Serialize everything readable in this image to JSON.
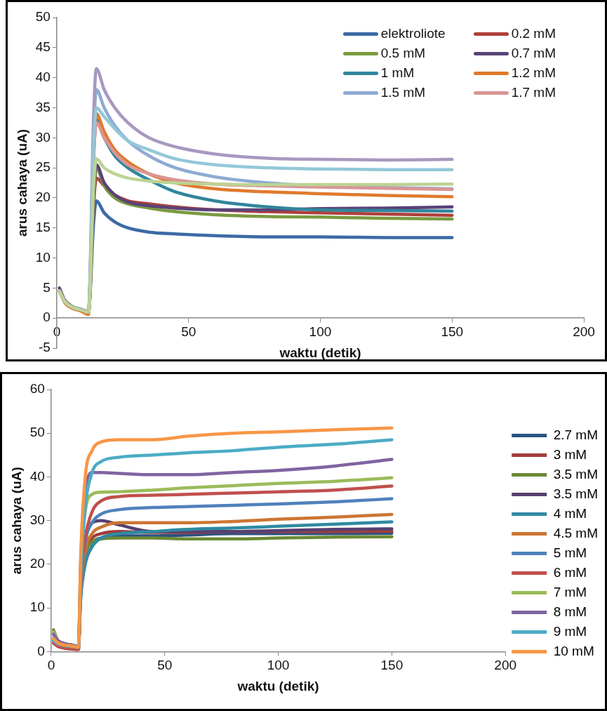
{
  "chart_data": [
    {
      "type": "line",
      "xlabel": "waktu (detik)",
      "ylabel": "arus cahaya (uA)",
      "xlim": [
        0,
        200
      ],
      "xticks": [
        0,
        50,
        100,
        150,
        200
      ],
      "ylim": [
        -5,
        50
      ],
      "yticks": [
        -5,
        0,
        5,
        10,
        15,
        20,
        25,
        30,
        35,
        40,
        45,
        50
      ],
      "grid": false,
      "legend": "top right",
      "marker": "none",
      "x": [
        1,
        3,
        6,
        9,
        12,
        14,
        15,
        18,
        22,
        27,
        35,
        45,
        60,
        80,
        100,
        125,
        150
      ],
      "series": [
        {
          "name": "elektroliote",
          "color": "#3d6aa5",
          "values": [
            4.5,
            2.8,
            1.8,
            1.4,
            1.0,
            16,
            19.5,
            17.5,
            16,
            15,
            14.3,
            14,
            13.7,
            13.5,
            13.5,
            13.4,
            13.4
          ]
        },
        {
          "name": "0.2 mM",
          "color": "#b03f3c",
          "values": [
            4.5,
            2.8,
            1.8,
            1.4,
            1.0,
            19,
            23.3,
            22,
            20.5,
            19.5,
            19,
            18.5,
            18,
            17.7,
            17.5,
            17.3,
            17.1
          ]
        },
        {
          "name": "0.5 mM",
          "color": "#7a9b40",
          "values": [
            4.5,
            2.8,
            1.8,
            1.4,
            1.0,
            20,
            25,
            22,
            20,
            19,
            18.3,
            17.7,
            17.2,
            16.9,
            16.8,
            16.6,
            16.5
          ]
        },
        {
          "name": "0.7 mM",
          "color": "#5a4377",
          "values": [
            5,
            3,
            1.9,
            1.5,
            1.1,
            21,
            25.5,
            22.5,
            20.5,
            19.3,
            18.7,
            18.3,
            18,
            18,
            18.2,
            18.3,
            18.5
          ]
        },
        {
          "name": "1 mM",
          "color": "#31859c",
          "values": [
            null,
            null,
            null,
            1.4,
            1.0,
            27,
            33,
            30,
            27,
            25,
            23,
            21,
            19.5,
            18.5,
            18,
            17.9,
            17.8
          ]
        },
        {
          "name": "1.2 mM",
          "color": "#e07a2e",
          "values": [
            4.5,
            2.6,
            1.6,
            1.2,
            0.6,
            28,
            34,
            31,
            28,
            26,
            24,
            22.5,
            21.5,
            21,
            20.7,
            20.4,
            20.2
          ]
        },
        {
          "name": "1.5 mM",
          "color": "#8eaad4",
          "values": [
            4.5,
            2.8,
            1.8,
            1.4,
            1.0,
            31,
            38,
            35,
            32,
            29.5,
            27,
            25,
            23.5,
            22.5,
            22,
            21.7,
            21.5
          ]
        },
        {
          "name": "1.7 mM",
          "color": "#d99694",
          "values": [
            4.5,
            2.8,
            1.8,
            1.4,
            1.0,
            27,
            32.5,
            30,
            27.5,
            25.5,
            24,
            23,
            22.3,
            22,
            21.8,
            21.6,
            21.4
          ]
        },
        {
          "color": "#a898c0",
          "values": [
            4.5,
            2.8,
            1.8,
            1.4,
            1.0,
            34,
            41.5,
            38,
            35,
            32.5,
            30,
            28.5,
            27.3,
            26.6,
            26.4,
            26.3,
            26.4
          ]
        },
        {
          "color": "#93c8d8",
          "values": [
            4.5,
            2.8,
            1.8,
            1.4,
            1.0,
            29,
            35,
            33.5,
            31.5,
            29.5,
            28,
            26.5,
            25.5,
            25,
            24.8,
            24.7,
            24.7
          ]
        },
        {
          "color": "#bcd394",
          "values": [
            4.5,
            2.8,
            1.8,
            1.4,
            1.0,
            22,
            26.5,
            25,
            24,
            23.3,
            22.8,
            22.5,
            22.3,
            22.2,
            22.2,
            22.2,
            22.3
          ]
        }
      ]
    },
    {
      "type": "line",
      "xlabel": "waktu (detik)",
      "ylabel": "arus cahaya (uA)",
      "xlim": [
        0,
        200
      ],
      "xticks": [
        0,
        50,
        100,
        150,
        200
      ],
      "ylim": [
        0,
        60
      ],
      "yticks": [
        0,
        10,
        20,
        30,
        40,
        50,
        60
      ],
      "grid": false,
      "legend": "right",
      "marker": "none",
      "x": [
        1,
        3,
        6,
        9,
        12,
        13,
        15,
        18,
        22,
        30,
        45,
        60,
        80,
        100,
        125,
        150
      ],
      "series": [
        {
          "name": "2.7 mM",
          "color": "#2c5282",
          "values": [
            3,
            2,
            1.5,
            1.3,
            1.0,
            14,
            22,
            25,
            26,
            26.5,
            26.5,
            26.7,
            27,
            27,
            27,
            27.1
          ]
        },
        {
          "name": "3 mM",
          "color": "#a33d3a",
          "values": [
            2,
            1.2,
            0.8,
            0.6,
            0.5,
            15,
            23,
            26,
            27,
            27.5,
            27.3,
            27.3,
            27.5,
            27.5,
            27.5,
            27.6
          ]
        },
        {
          "name": "3.5 mM",
          "color": "#6b8a35",
          "values": [
            5,
            2.5,
            1.8,
            1.5,
            1.2,
            14,
            22,
            25,
            25.8,
            26,
            26,
            25.8,
            25.8,
            26,
            26.2,
            26.3
          ]
        },
        {
          "name": "3.5 mM",
          "color": "#574070",
          "values": [
            4,
            2.5,
            1.8,
            1.5,
            1.2,
            16,
            26,
            29.5,
            30,
            29,
            27.5,
            27.5,
            27.5,
            27.7,
            28,
            28.1
          ]
        },
        {
          "name": "4 mM",
          "color": "#2f8aa3",
          "values": [
            2.5,
            1.8,
            1.4,
            1.2,
            1.0,
            12,
            20,
            24,
            26,
            27,
            27.5,
            28,
            28.3,
            28.7,
            29.2,
            29.7
          ]
        },
        {
          "name": "4.5 mM",
          "color": "#cc7633",
          "values": [
            3,
            2,
            1.5,
            1.3,
            1.0,
            14,
            23,
            27,
            28.5,
            29.5,
            29.5,
            29.5,
            29.8,
            30.3,
            30.8,
            31.4
          ]
        },
        {
          "name": "5 mM",
          "color": "#4f81bd",
          "values": [
            3,
            2,
            1.5,
            1.3,
            1.0,
            15,
            25,
            29.5,
            31.5,
            32.5,
            33,
            33.2,
            33.5,
            33.8,
            34.3,
            35
          ]
        },
        {
          "name": "6 mM",
          "color": "#c0504d",
          "values": [
            2,
            1.3,
            0.9,
            0.7,
            0.5,
            16,
            26,
            32,
            34.5,
            35.5,
            35.8,
            36,
            36.3,
            36.6,
            37,
            37.9
          ]
        },
        {
          "name": "7 mM",
          "color": "#9bbb59",
          "values": [
            4.5,
            2.5,
            1.8,
            1.5,
            1.2,
            18,
            32,
            36,
            36.5,
            36.6,
            37,
            37.5,
            38,
            38.5,
            39,
            39.8
          ]
        },
        {
          "name": "8 mM",
          "color": "#8064a2",
          "values": [
            4,
            2.5,
            1.8,
            1.5,
            1.2,
            20,
            36,
            41,
            41,
            40.8,
            40.5,
            40.5,
            41,
            41.5,
            42.5,
            44
          ]
        },
        {
          "name": "9 mM",
          "color": "#4bacc6",
          "values": [
            2.5,
            1.8,
            1.4,
            1.2,
            1.0,
            18,
            33,
            41,
            43.5,
            44.5,
            45,
            45.5,
            46,
            46.8,
            47.5,
            48.5
          ]
        },
        {
          "name": "10 mM",
          "color": "#f79646",
          "values": [
            3,
            2,
            1.5,
            1.3,
            1.0,
            22,
            40,
            46,
            48,
            48.5,
            48.5,
            49.3,
            50,
            50.3,
            50.8,
            51.2
          ]
        }
      ]
    }
  ]
}
